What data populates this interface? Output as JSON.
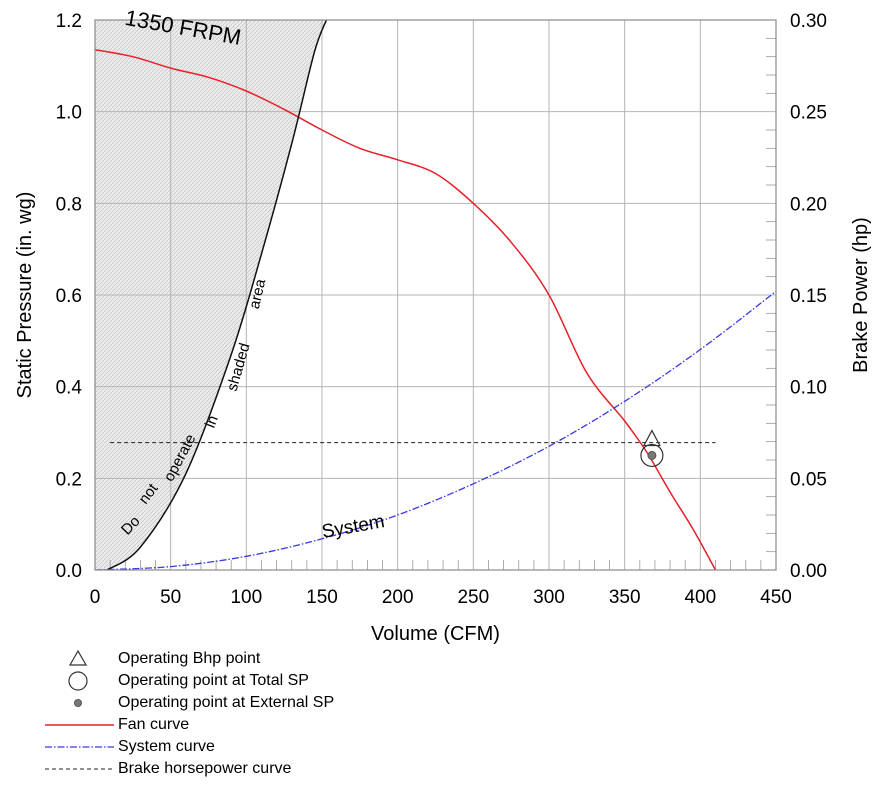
{
  "chart_data": {
    "type": "line",
    "xlabel": "Volume (CFM)",
    "ylabel": "Static Pressure (in. wg)",
    "y2label": "Brake Power (hp)",
    "xlim": [
      0,
      450
    ],
    "ylim": [
      0,
      1.2
    ],
    "y2lim": [
      0,
      0.3
    ],
    "xticks": [
      0,
      50,
      100,
      150,
      200,
      250,
      300,
      350,
      400,
      450
    ],
    "yticks": [
      0.0,
      0.2,
      0.4,
      0.6,
      0.8,
      1.0,
      1.2
    ],
    "y2ticks": [
      0.0,
      0.05,
      0.1,
      0.15,
      0.2,
      0.25,
      0.3
    ],
    "grid": true,
    "fan_speed_label": "1350 FRPM",
    "system_label": "System",
    "shaded_area_text": [
      "Do",
      "not",
      "operate",
      "in",
      "shaded",
      "area"
    ],
    "series": [
      {
        "name": "Fan curve",
        "color": "#e8202a",
        "x": [
          0,
          25,
          50,
          75,
          100,
          125,
          150,
          175,
          200,
          225,
          250,
          275,
          300,
          325,
          350,
          365,
          380,
          395,
          410
        ],
        "y": [
          1.135,
          1.12,
          1.095,
          1.075,
          1.045,
          1.005,
          0.96,
          0.92,
          0.895,
          0.865,
          0.8,
          0.715,
          0.6,
          0.43,
          0.325,
          0.255,
          0.17,
          0.09,
          0.0
        ]
      },
      {
        "name": "System curve",
        "color": "#3838e6",
        "x": [
          0,
          50,
          100,
          150,
          200,
          250,
          300,
          350,
          400,
          450
        ],
        "y": [
          0.0,
          0.0075,
          0.03,
          0.068,
          0.12,
          0.188,
          0.27,
          0.368,
          0.481,
          0.608
        ]
      },
      {
        "name": "Brake horsepower curve",
        "color": "#222222",
        "x": [
          10,
          410
        ],
        "y2": [
          0.0695,
          0.0695
        ]
      },
      {
        "name": "shaded-area-boundary",
        "color": "#111111",
        "x": [
          8,
          30,
          60,
          90,
          110,
          130,
          145,
          153
        ],
        "y": [
          0.0,
          0.05,
          0.21,
          0.47,
          0.69,
          0.93,
          1.13,
          1.2
        ]
      }
    ],
    "points": [
      {
        "name": "Operating Bhp point",
        "x": 368,
        "y2": 0.0695
      },
      {
        "name": "Operating point at Total SP",
        "x": 368,
        "y": 0.25
      },
      {
        "name": "Operating point at External SP",
        "x": 368,
        "y": 0.25
      }
    ]
  },
  "legend": {
    "items": [
      {
        "symbol": "triangle",
        "label": "Operating Bhp point"
      },
      {
        "symbol": "circle",
        "label": "Operating point at Total SP"
      },
      {
        "symbol": "dot",
        "label": "Operating point at External SP"
      },
      {
        "symbol": "red-line",
        "label": "Fan curve"
      },
      {
        "symbol": "blue-dashdot",
        "label": "System curve"
      },
      {
        "symbol": "black-dashed",
        "label": "Brake horsepower curve"
      }
    ]
  }
}
